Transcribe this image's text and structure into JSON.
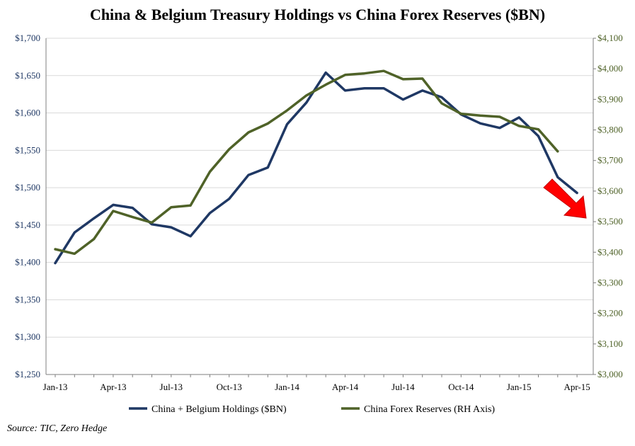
{
  "chart_data": {
    "type": "line",
    "title": "China & Belgium Treasury Holdings vs China Forex Reserves ($BN)",
    "source": "Source: TIC, Zero Hedge",
    "x": [
      "Jan-13",
      "Feb-13",
      "Mar-13",
      "Apr-13",
      "May-13",
      "Jun-13",
      "Jul-13",
      "Aug-13",
      "Sep-13",
      "Oct-13",
      "Nov-13",
      "Dec-13",
      "Jan-14",
      "Feb-14",
      "Mar-14",
      "Apr-14",
      "May-14",
      "Jun-14",
      "Jul-14",
      "Aug-14",
      "Sep-14",
      "Oct-14",
      "Nov-14",
      "Dec-14",
      "Jan-15",
      "Feb-15",
      "Mar-15",
      "Apr-15"
    ],
    "x_tick_labels": [
      "Jan-13",
      "Apr-13",
      "Jul-13",
      "Oct-13",
      "Jan-14",
      "Apr-14",
      "Jul-14",
      "Oct-14",
      "Jan-15",
      "Apr-15"
    ],
    "left_axis": {
      "ylim": [
        1250,
        1700
      ],
      "tick_labels": [
        "$1,250",
        "$1,300",
        "$1,350",
        "$1,400",
        "$1,450",
        "$1,500",
        "$1,550",
        "$1,600",
        "$1,650",
        "$1,700"
      ],
      "color": "#1f3864"
    },
    "right_axis": {
      "ylim": [
        3000,
        4100
      ],
      "tick_labels": [
        "$3,000",
        "$3,100",
        "$3,200",
        "$3,300",
        "$3,400",
        "$3,500",
        "$3,600",
        "$3,700",
        "$3,800",
        "$3,900",
        "$4,000",
        "$4,100"
      ],
      "color": "#4f6228"
    },
    "series": [
      {
        "name": "China + Belgium Holdings ($BN)",
        "axis": "left",
        "color": "#1f3864",
        "values": [
          1399,
          1440,
          1459,
          1477,
          1473,
          1451,
          1447,
          1435,
          1466,
          1485,
          1517,
          1527,
          1585,
          1614,
          1654,
          1630,
          1633,
          1633,
          1618,
          1630,
          1621,
          1598,
          1586,
          1580,
          1594,
          1569,
          1514,
          1493
        ]
      },
      {
        "name": "China Forex Reserves (RH Axis)",
        "axis": "right",
        "color": "#4f6228",
        "values": [
          3410,
          3395,
          3443,
          3535,
          3515,
          3497,
          3547,
          3553,
          3663,
          3737,
          3792,
          3821,
          3864,
          3913,
          3948,
          3980,
          3985,
          3993,
          3966,
          3968,
          3887,
          3853,
          3847,
          3843,
          3813,
          3802,
          3730,
          null
        ]
      }
    ],
    "annotation": {
      "type": "down-arrow",
      "color": "#ff0000"
    },
    "grid": "horizontal",
    "legend_position": "bottom"
  }
}
